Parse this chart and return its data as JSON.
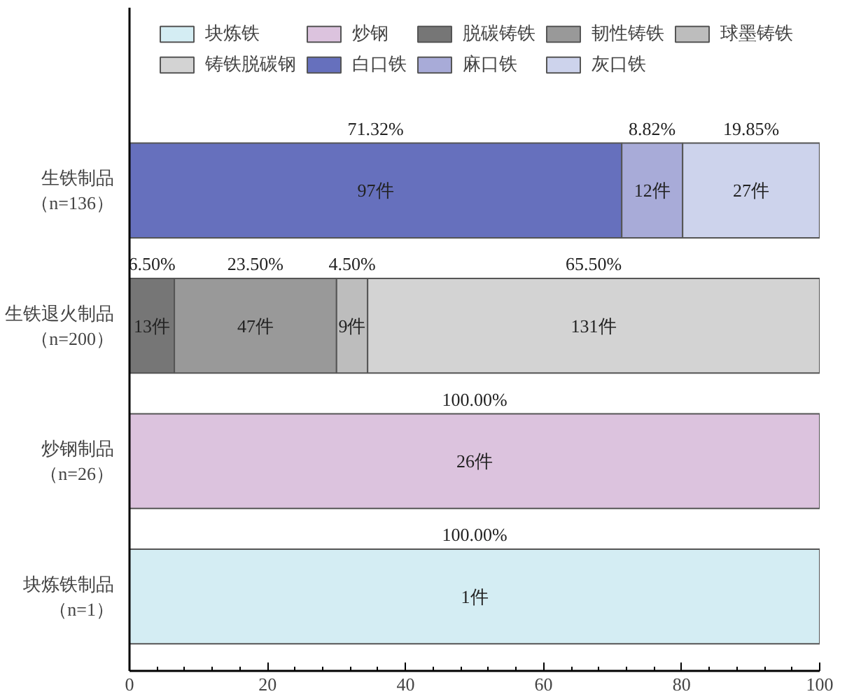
{
  "chart_data": {
    "type": "bar",
    "orientation": "horizontal",
    "stacked": true,
    "categories": [
      "生铁制品（n=136）",
      "生铁退火制品（n=200）",
      "炒钢制品（n=26）",
      "块炼铁制品（n=1）"
    ],
    "series": [
      {
        "name": "块炼铁",
        "color": "#d4edf3",
        "values": [
          null,
          null,
          null,
          100
        ],
        "value_labels": [
          null,
          null,
          null,
          "100.00%"
        ]
      },
      {
        "name": "炒钢",
        "color": "#dcc3de",
        "values": [
          null,
          null,
          100,
          null
        ],
        "value_labels": [
          null,
          null,
          "100.00%",
          null
        ]
      },
      {
        "name": "脱碳铸铁",
        "color": "#767676",
        "values": [
          null,
          6.5,
          null,
          null
        ],
        "value_labels": [
          null,
          "6.50%",
          null,
          null
        ]
      },
      {
        "name": "韧性铸铁",
        "color": "#999999",
        "values": [
          null,
          23.5,
          null,
          null
        ],
        "value_labels": [
          null,
          "23.50%",
          null,
          null
        ]
      },
      {
        "name": "球墨铸铁",
        "color": "#bdbdbd",
        "values": [
          null,
          4.5,
          null,
          null
        ],
        "value_labels": [
          null,
          "4.50%",
          null,
          null
        ]
      },
      {
        "name": "铸铁脱碳钢",
        "color": "#d3d3d3",
        "values": [
          null,
          65.5,
          null,
          null
        ],
        "value_labels": [
          null,
          "65.50%",
          null,
          null
        ]
      },
      {
        "name": "白口铁",
        "color": "#6670bd",
        "values": [
          71.32,
          null,
          null,
          null
        ],
        "value_labels": [
          "71.32%",
          null,
          null,
          null
        ]
      },
      {
        "name": "麻口铁",
        "color": "#a8abd8",
        "values": [
          8.82,
          null,
          null,
          null
        ],
        "value_labels": [
          "8.82%",
          null,
          null,
          null
        ]
      },
      {
        "name": "灰口铁",
        "color": "#cdd3ec",
        "values": [
          19.85,
          null,
          null,
          null
        ],
        "value_labels": [
          "19.85%",
          null,
          null,
          null
        ]
      }
    ],
    "annotations": [
      "97件",
      "12件",
      "27件",
      "13件",
      "47件",
      "9件",
      "131件",
      "26件",
      "1件"
    ],
    "xlim": [
      0,
      100
    ],
    "xticks": [
      0,
      20,
      40,
      60,
      80,
      100
    ],
    "legend": "top",
    "grid": false
  }
}
